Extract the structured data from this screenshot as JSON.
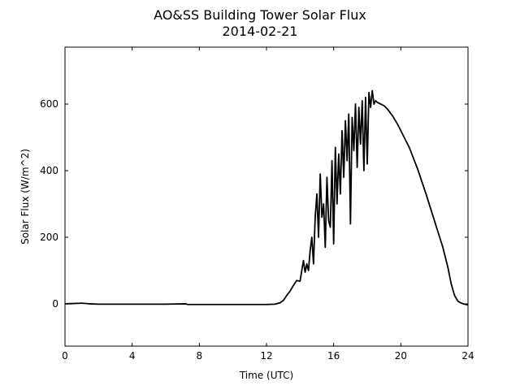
{
  "chart_data": {
    "type": "line",
    "title": "AO&SS Building Tower Solar Flux",
    "subtitle": "2014-02-21",
    "x_label": "Time (UTC)",
    "y_label": "Solar Flux (W/m^2)",
    "xlim": [
      0,
      24
    ],
    "xticks": [
      0,
      4,
      8,
      12,
      16,
      20,
      24
    ],
    "ylim": [
      -127,
      771
    ],
    "yticks": [
      0,
      200,
      400,
      600
    ],
    "grid": false,
    "series": [
      {
        "color": "#000000",
        "x": [
          0,
          0.5,
          1,
          1.5,
          2,
          4,
          6,
          7.2,
          7.3,
          9,
          11,
          12,
          12.5,
          12.8,
          13,
          13.2,
          13.4,
          13.6,
          13.8,
          14.0,
          14.1,
          14.2,
          14.3,
          14.4,
          14.5,
          14.6,
          14.7,
          14.8,
          14.9,
          15.0,
          15.1,
          15.2,
          15.3,
          15.4,
          15.5,
          15.6,
          15.7,
          15.8,
          15.9,
          16.0,
          16.1,
          16.2,
          16.3,
          16.4,
          16.5,
          16.6,
          16.7,
          16.8,
          16.9,
          17.0,
          17.1,
          17.2,
          17.3,
          17.4,
          17.5,
          17.6,
          17.7,
          17.8,
          17.9,
          18.0,
          18.1,
          18.2,
          18.3,
          18.4,
          18.5,
          18.6,
          18.8,
          19,
          19.2,
          19.5,
          19.8,
          20,
          20.5,
          21,
          21.5,
          22,
          22.5,
          22.8,
          23,
          23.2,
          23.4,
          23.6,
          23.8,
          24
        ],
        "values": [
          0,
          1,
          2,
          0,
          -1,
          -1,
          -1,
          0,
          -2,
          -2,
          -2,
          -2,
          -1,
          3,
          10,
          25,
          38,
          55,
          70,
          68,
          100,
          130,
          95,
          120,
          100,
          160,
          200,
          120,
          260,
          330,
          200,
          390,
          260,
          300,
          170,
          380,
          250,
          230,
          430,
          180,
          470,
          300,
          450,
          330,
          520,
          380,
          550,
          430,
          570,
          240,
          560,
          460,
          600,
          410,
          590,
          480,
          610,
          400,
          620,
          420,
          635,
          590,
          640,
          600,
          610,
          605,
          600,
          595,
          585,
          565,
          540,
          520,
          470,
          405,
          330,
          250,
          170,
          110,
          60,
          25,
          8,
          2,
          -1,
          -3
        ]
      }
    ]
  }
}
